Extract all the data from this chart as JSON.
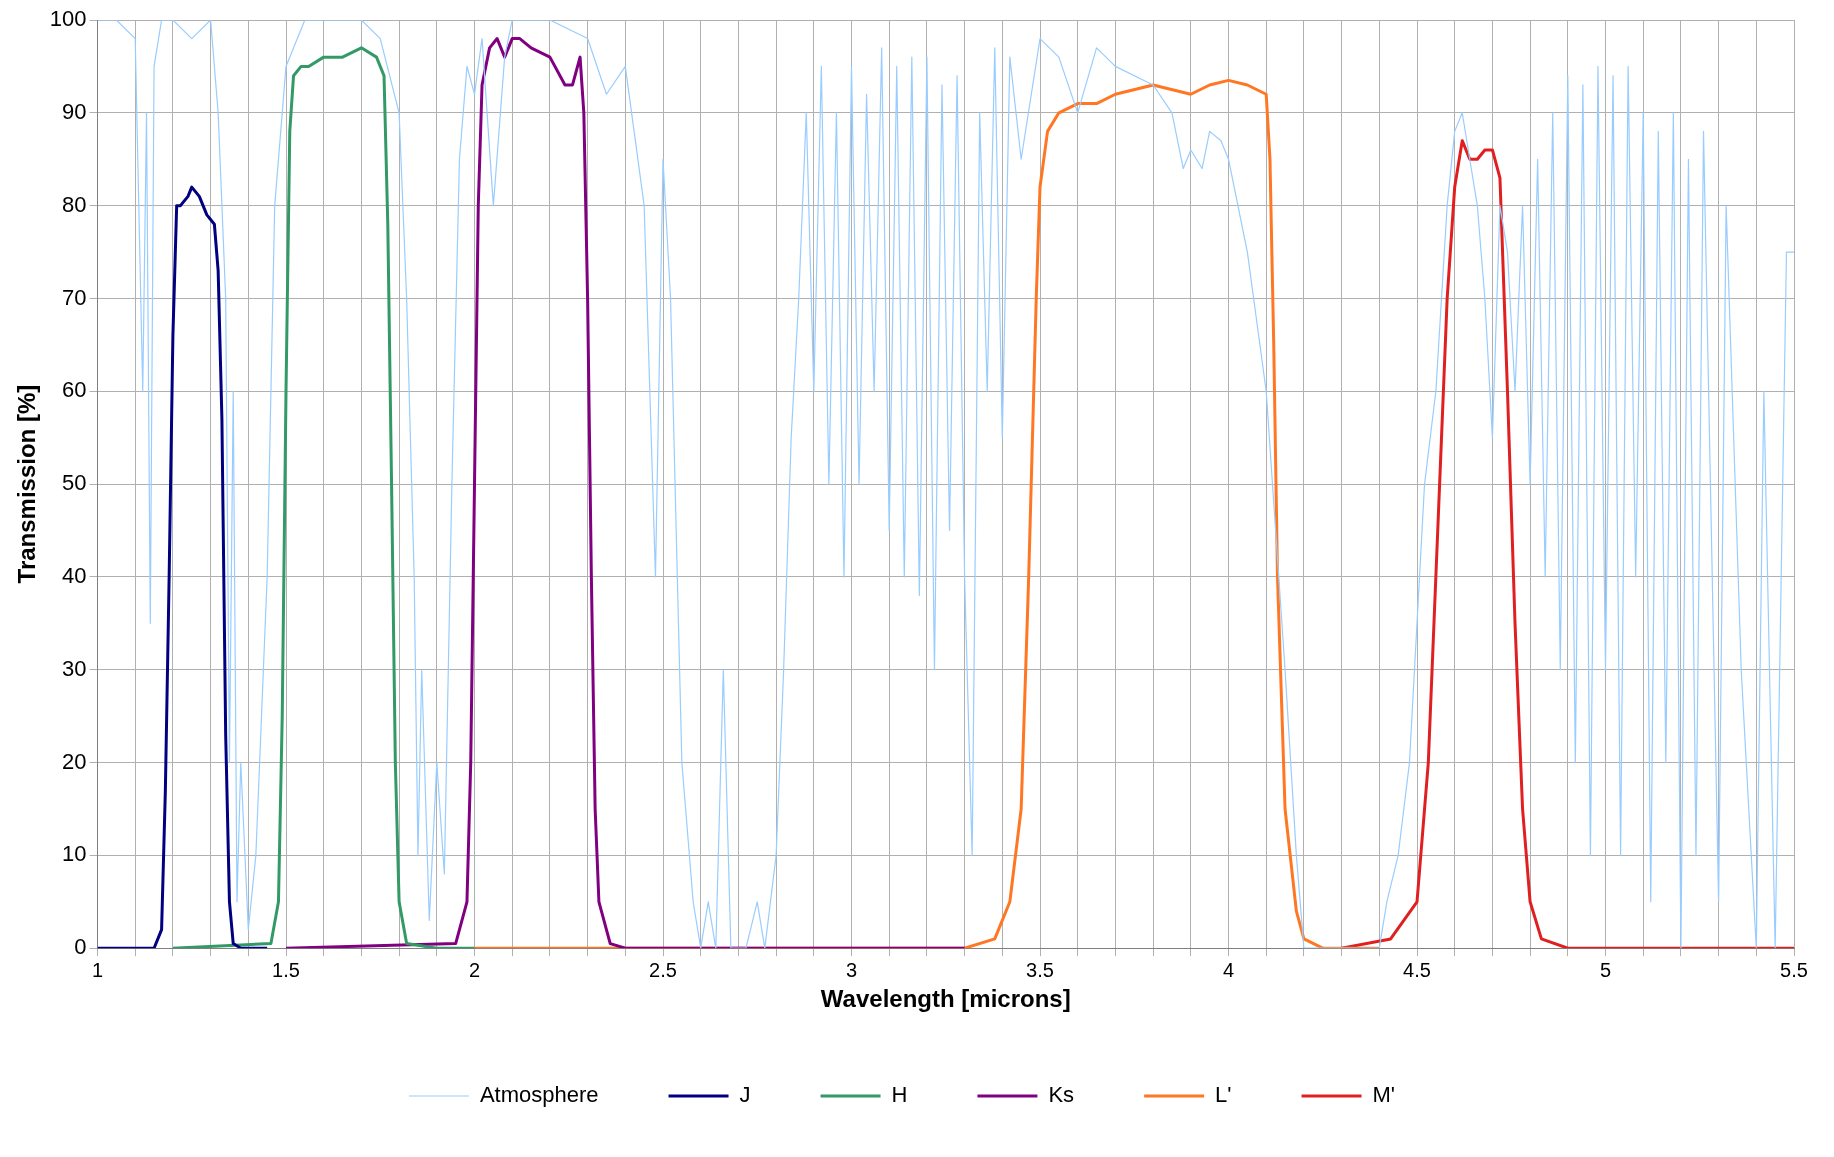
{
  "chart_data": {
    "type": "line",
    "xlabel": "Wavelength [microns]",
    "ylabel": "Transmission [%]",
    "xlim": [
      1,
      5.5
    ],
    "ylim": [
      0,
      100
    ],
    "xticks": [
      1,
      {
        "value": 1.1,
        "label": null
      },
      {
        "value": 1.2,
        "label": null
      },
      {
        "value": 1.3,
        "label": null
      },
      {
        "value": 1.4,
        "label": null
      },
      1.5,
      {
        "value": 1.6,
        "label": null
      },
      {
        "value": 1.7,
        "label": null
      },
      {
        "value": 1.8,
        "label": null
      },
      {
        "value": 1.9,
        "label": null
      },
      2,
      {
        "value": 2.1,
        "label": null
      },
      {
        "value": 2.2,
        "label": null
      },
      {
        "value": 2.3,
        "label": null
      },
      {
        "value": 2.4,
        "label": null
      },
      2.5,
      {
        "value": 2.6,
        "label": null
      },
      {
        "value": 2.7,
        "label": null
      },
      {
        "value": 2.8,
        "label": null
      },
      {
        "value": 2.9,
        "label": null
      },
      3,
      {
        "value": 3.1,
        "label": null
      },
      {
        "value": 3.2,
        "label": null
      },
      {
        "value": 3.3,
        "label": null
      },
      {
        "value": 3.4,
        "label": null
      },
      3.5,
      {
        "value": 3.6,
        "label": null
      },
      {
        "value": 3.7,
        "label": null
      },
      {
        "value": 3.8,
        "label": null
      },
      {
        "value": 3.9,
        "label": null
      },
      4,
      {
        "value": 4.1,
        "label": null
      },
      {
        "value": 4.2,
        "label": null
      },
      {
        "value": 4.3,
        "label": null
      },
      {
        "value": 4.4,
        "label": null
      },
      4.5,
      {
        "value": 4.6,
        "label": null
      },
      {
        "value": 4.7,
        "label": null
      },
      {
        "value": 4.8,
        "label": null
      },
      {
        "value": 4.9,
        "label": null
      },
      5,
      {
        "value": 5.1,
        "label": null
      },
      {
        "value": 5.2,
        "label": null
      },
      {
        "value": 5.3,
        "label": null
      },
      {
        "value": 5.4,
        "label": null
      },
      5.5
    ],
    "yticks": [
      0,
      10,
      20,
      30,
      40,
      50,
      60,
      70,
      80,
      90,
      100
    ],
    "grid": true,
    "legend": "bottom",
    "marker": "none",
    "line_style": "solid",
    "series": [
      {
        "name": "Atmosphere",
        "color": "#99ccff",
        "x": [
          1.0,
          1.05,
          1.1,
          1.12,
          1.13,
          1.14,
          1.15,
          1.17,
          1.2,
          1.25,
          1.3,
          1.32,
          1.34,
          1.35,
          1.36,
          1.37,
          1.38,
          1.4,
          1.42,
          1.45,
          1.47,
          1.5,
          1.55,
          1.6,
          1.7,
          1.75,
          1.8,
          1.82,
          1.84,
          1.85,
          1.86,
          1.88,
          1.9,
          1.92,
          1.94,
          1.96,
          1.98,
          2.0,
          2.02,
          2.05,
          2.08,
          2.1,
          2.2,
          2.3,
          2.35,
          2.4,
          2.45,
          2.48,
          2.5,
          2.52,
          2.55,
          2.58,
          2.6,
          2.62,
          2.64,
          2.66,
          2.68,
          2.72,
          2.75,
          2.77,
          2.8,
          2.82,
          2.84,
          2.86,
          2.88,
          2.9,
          2.92,
          2.94,
          2.96,
          2.98,
          3.0,
          3.02,
          3.04,
          3.06,
          3.08,
          3.1,
          3.12,
          3.14,
          3.16,
          3.18,
          3.2,
          3.22,
          3.24,
          3.26,
          3.28,
          3.3,
          3.32,
          3.34,
          3.36,
          3.38,
          3.4,
          3.42,
          3.45,
          3.5,
          3.55,
          3.6,
          3.65,
          3.7,
          3.8,
          3.85,
          3.88,
          3.9,
          3.93,
          3.95,
          3.98,
          4.0,
          4.05,
          4.1,
          4.15,
          4.18,
          4.2,
          4.4,
          4.42,
          4.45,
          4.48,
          4.5,
          4.52,
          4.55,
          4.58,
          4.6,
          4.62,
          4.64,
          4.66,
          4.68,
          4.7,
          4.72,
          4.74,
          4.76,
          4.78,
          4.8,
          4.82,
          4.84,
          4.86,
          4.88,
          4.9,
          4.92,
          4.94,
          4.96,
          4.98,
          5.0,
          5.02,
          5.04,
          5.06,
          5.08,
          5.1,
          5.12,
          5.14,
          5.16,
          5.18,
          5.2,
          5.22,
          5.24,
          5.26,
          5.3,
          5.32,
          5.36,
          5.4,
          5.42,
          5.45,
          5.48,
          5.5
        ],
        "values": [
          100,
          100,
          98,
          60,
          90,
          35,
          95,
          100,
          100,
          98,
          100,
          90,
          70,
          20,
          60,
          5,
          20,
          2,
          10,
          40,
          80,
          95,
          100,
          100,
          100,
          98,
          90,
          70,
          40,
          10,
          30,
          3,
          20,
          8,
          50,
          85,
          95,
          92,
          98,
          80,
          96,
          100,
          100,
          98,
          92,
          95,
          80,
          40,
          85,
          70,
          20,
          5,
          0,
          5,
          0,
          30,
          0,
          0,
          5,
          0,
          10,
          30,
          55,
          70,
          90,
          60,
          95,
          50,
          90,
          40,
          95,
          50,
          92,
          60,
          97,
          45,
          95,
          40,
          96,
          38,
          96,
          30,
          93,
          45,
          94,
          40,
          10,
          90,
          60,
          97,
          55,
          96,
          85,
          98,
          96,
          90,
          97,
          95,
          93,
          90,
          84,
          86,
          84,
          88,
          87,
          85,
          75,
          60,
          30,
          10,
          0,
          0,
          5,
          10,
          20,
          35,
          50,
          60,
          80,
          88,
          90,
          85,
          80,
          70,
          55,
          80,
          75,
          60,
          80,
          50,
          85,
          40,
          90,
          30,
          94,
          20,
          93,
          10,
          95,
          30,
          94,
          10,
          95,
          40,
          90,
          5,
          88,
          20,
          90,
          0,
          85,
          10,
          88,
          5,
          80,
          30,
          0,
          60,
          0,
          75,
          75
        ]
      },
      {
        "name": "J",
        "color": "#000080",
        "x": [
          1.0,
          1.15,
          1.17,
          1.18,
          1.19,
          1.2,
          1.21,
          1.22,
          1.24,
          1.25,
          1.27,
          1.29,
          1.31,
          1.32,
          1.33,
          1.34,
          1.35,
          1.36,
          1.38,
          1.45
        ],
        "values": [
          0,
          0,
          2,
          17,
          40,
          66,
          80,
          80,
          81,
          82,
          81,
          79,
          78,
          73,
          57,
          23,
          5,
          0.5,
          0,
          0
        ]
      },
      {
        "name": "H",
        "color": "#339966",
        "x": [
          1.2,
          1.46,
          1.48,
          1.49,
          1.5,
          1.51,
          1.52,
          1.54,
          1.56,
          1.6,
          1.65,
          1.7,
          1.74,
          1.76,
          1.77,
          1.78,
          1.79,
          1.8,
          1.82,
          1.9,
          2.0
        ],
        "values": [
          0,
          0.5,
          5,
          25,
          60,
          88,
          94,
          95,
          95,
          96,
          96,
          97,
          96,
          94,
          78,
          50,
          20,
          5,
          0.5,
          0,
          0
        ]
      },
      {
        "name": "Ks",
        "color": "#800080",
        "x": [
          1.5,
          1.95,
          1.98,
          1.99,
          2.0,
          2.01,
          2.02,
          2.04,
          2.06,
          2.08,
          2.1,
          2.12,
          2.15,
          2.2,
          2.24,
          2.26,
          2.28,
          2.29,
          2.3,
          2.31,
          2.32,
          2.33,
          2.36,
          2.4,
          3.3
        ],
        "values": [
          0,
          0.5,
          5,
          20,
          50,
          80,
          93,
          97,
          98,
          96,
          98,
          98,
          97,
          96,
          93,
          93,
          96,
          90,
          70,
          40,
          15,
          5,
          0.5,
          0,
          0
        ]
      },
      {
        "name": "L'",
        "color": "#ff7722",
        "x": [
          2.0,
          3.3,
          3.38,
          3.42,
          3.45,
          3.47,
          3.49,
          3.5,
          3.52,
          3.55,
          3.6,
          3.65,
          3.7,
          3.8,
          3.9,
          3.95,
          4.0,
          4.05,
          4.1,
          4.11,
          4.12,
          4.13,
          4.15,
          4.18,
          4.2,
          4.25,
          4.4
        ],
        "values": [
          0,
          0,
          1,
          5,
          15,
          40,
          70,
          82,
          88,
          90,
          91,
          91,
          92,
          93,
          92,
          93,
          93.5,
          93,
          92,
          85,
          65,
          40,
          15,
          4,
          1,
          0,
          0
        ]
      },
      {
        "name": "M'",
        "color": "#e02020",
        "x": [
          4.3,
          4.43,
          4.5,
          4.53,
          4.56,
          4.58,
          4.6,
          4.62,
          4.64,
          4.66,
          4.68,
          4.7,
          4.72,
          4.74,
          4.76,
          4.78,
          4.8,
          4.83,
          4.9,
          5.5
        ],
        "values": [
          0,
          1,
          5,
          20,
          50,
          70,
          82,
          87,
          85,
          85,
          86,
          86,
          83,
          60,
          35,
          15,
          5,
          1,
          0,
          0
        ]
      }
    ]
  }
}
